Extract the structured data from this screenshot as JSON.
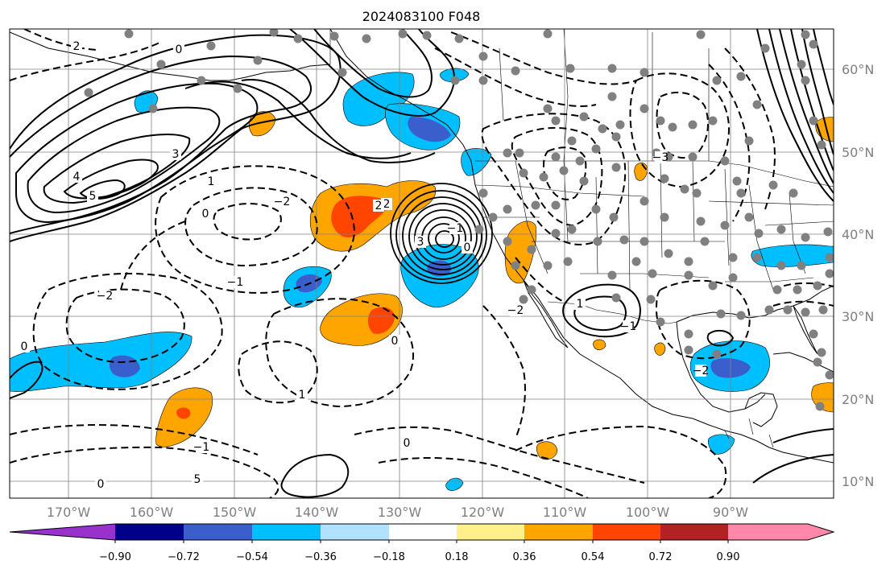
{
  "title": "2024083100 F048",
  "lat_labels": [
    "60°N",
    "50°N",
    "40°N",
    "30°N",
    "20°N",
    "10°N"
  ],
  "lon_labels": [
    "170°W",
    "160°W",
    "150°W",
    "140°W",
    "130°W",
    "120°W",
    "110°W",
    "100°W",
    "90°W"
  ],
  "colorbar": {
    "colors": [
      "#9932cc",
      "#00008b",
      "#3a5fcd",
      "#00bfff",
      "#b0e2ff",
      "#ffffff",
      "#fff08a",
      "#ffa500",
      "#ff4500",
      "#b22222",
      "#ff88aa"
    ],
    "tick_labels": [
      "−0.90",
      "−0.72",
      "−0.54",
      "−0.36",
      "−0.18",
      "0.18",
      "0.36",
      "0.54",
      "0.72",
      "0.90"
    ]
  },
  "contour_labels": [
    "0",
    "2",
    "3",
    "4",
    "5",
    "1",
    "−2",
    "−1",
    "0",
    "5",
    "2",
    "3",
    "0",
    "1",
    "−1",
    "−2",
    "−3",
    "−2",
    "0",
    "1",
    "2",
    "0",
    "−1",
    "−2",
    "0",
    "−1",
    "0"
  ]
}
